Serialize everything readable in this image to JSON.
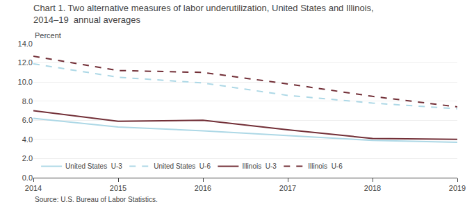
{
  "chart_data": {
    "type": "line",
    "title": "Chart 1. Two alternative measures of labor underutilization, United States and Illinois, 2014–19  annual averages",
    "ylabel": "Percent",
    "annotations": [
      "Source: U.S. Bureau of Labor Statistics."
    ],
    "x": [
      2014,
      2015,
      2016,
      2017,
      2018,
      2019
    ],
    "series": [
      {
        "name": "United States  U-3",
        "color": "#add8e6",
        "line_style": "solid",
        "values": [
          6.2,
          5.3,
          4.9,
          4.4,
          3.9,
          3.7
        ]
      },
      {
        "name": "United States  U-6",
        "color": "#add8e6",
        "line_style": "dashed",
        "values": [
          11.9,
          10.5,
          9.9,
          8.6,
          7.8,
          7.2
        ]
      },
      {
        "name": "Illinois  U-3",
        "color": "#722F37",
        "line_style": "solid",
        "values": [
          7.0,
          5.9,
          6.0,
          5.0,
          4.1,
          4.0
        ]
      },
      {
        "name": "Illinois  U-6",
        "color": "#722F37",
        "line_style": "dashed",
        "values": [
          12.7,
          11.2,
          11.0,
          9.8,
          8.5,
          7.4
        ]
      }
    ],
    "xlim": [
      2014,
      2019
    ],
    "xticks": [
      2014,
      2015,
      2016,
      2017,
      2018,
      2019
    ],
    "ylim": [
      0,
      14
    ],
    "yticks": [
      {
        "value": 0,
        "label": "0.0"
      },
      {
        "value": 2,
        "label": "2.0"
      },
      {
        "value": 4,
        "label": "4.0"
      },
      {
        "value": 6,
        "label": "6.0"
      },
      {
        "value": 8,
        "label": "8.0"
      },
      {
        "value": 10,
        "label": "10.0"
      },
      {
        "value": 12,
        "label": "12.0"
      },
      {
        "value": 14,
        "label": "14.0"
      }
    ],
    "grid": true,
    "legend": "lower left"
  }
}
